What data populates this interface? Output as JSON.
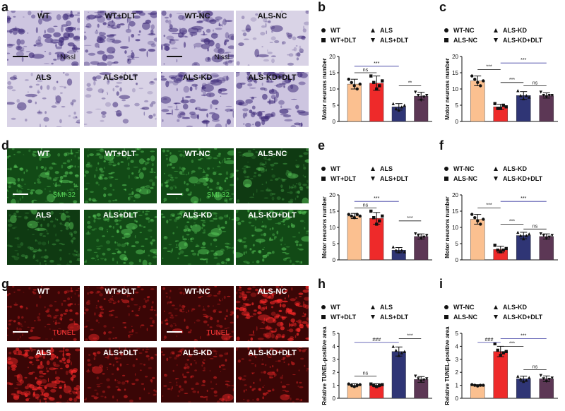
{
  "figure": {
    "panel_letters": [
      "a",
      "b",
      "c",
      "d",
      "e",
      "f",
      "g",
      "h",
      "i"
    ]
  },
  "micrographs": {
    "nissl": {
      "stain_label": "Nissl",
      "tiles": [
        "WT",
        "WT+DLT",
        "WT-NC",
        "ALS-NC",
        "ALS",
        "ALS+DLT",
        "ALS-KD",
        "ALS-KD+DLT"
      ]
    },
    "smi32": {
      "stain_label": "SMI-32",
      "tiles": [
        "WT",
        "WT+DLT",
        "WT-NC",
        "ALS-NC",
        "ALS",
        "ALS+DLT",
        "ALS-KD",
        "ALS-KD+DLT"
      ]
    },
    "tunel": {
      "stain_label": "TUNEL",
      "tiles": [
        "WT",
        "WT+DLT",
        "WT-NC",
        "ALS-NC",
        "ALS",
        "ALS+DLT",
        "ALS-KD",
        "ALS-KD+DLT"
      ]
    }
  },
  "chart_data": [
    {
      "panel": "b",
      "type": "bar",
      "ylabel": "Motor neurons number",
      "ylim": [
        0,
        20
      ],
      "yticks": [
        0,
        5,
        10,
        15,
        20
      ],
      "legend": [
        "WT",
        "ALS",
        "WT+DLT",
        "ALS+DLT"
      ],
      "series": [
        {
          "name": "WT",
          "values": [
            11.5
          ],
          "error": 1.5,
          "color": "#fbc090",
          "points": [
            13,
            12,
            11,
            10,
            11.5
          ]
        },
        {
          "name": "WT+DLT",
          "values": [
            11.8
          ],
          "error": 2.2,
          "color": "#ee2a2a",
          "points": [
            14,
            12,
            10,
            11,
            12.5
          ]
        },
        {
          "name": "ALS",
          "values": [
            4.5
          ],
          "error": 1.0,
          "color": "#2f3575",
          "points": [
            5.5,
            4,
            3.5,
            4.5,
            5
          ]
        },
        {
          "name": "ALS+DLT",
          "values": [
            7.8
          ],
          "error": 1.2,
          "color": "#5c3755",
          "points": [
            9,
            8,
            6.5,
            7.5,
            8
          ]
        }
      ],
      "significance": [
        {
          "from": 0,
          "to": 1,
          "label": "ns",
          "level": 15
        },
        {
          "from": 0,
          "to": 2,
          "label": "***",
          "level": 17
        },
        {
          "from": 2,
          "to": 3,
          "label": "**",
          "level": 11
        }
      ]
    },
    {
      "panel": "c",
      "type": "bar",
      "ylabel": "Motor neurons number",
      "ylim": [
        0,
        20
      ],
      "yticks": [
        0,
        5,
        10,
        15,
        20
      ],
      "legend": [
        "WT-NC",
        "ALS-KD",
        "ALS-NC",
        "ALS-KD+DLT"
      ],
      "series": [
        {
          "name": "WT-NC",
          "values": [
            12.5
          ],
          "error": 1.5,
          "color": "#fbc090",
          "points": [
            14,
            13,
            12,
            11,
            12.5
          ]
        },
        {
          "name": "ALS-NC",
          "values": [
            4.5
          ],
          "error": 0.8,
          "color": "#ee2a2a",
          "points": [
            5.5,
            4,
            4,
            5,
            4.5
          ]
        },
        {
          "name": "ALS-KD",
          "values": [
            8.0
          ],
          "error": 1.2,
          "color": "#2f3575",
          "points": [
            9.5,
            8,
            7,
            8,
            7.5
          ]
        },
        {
          "name": "ALS-KD+DLT",
          "values": [
            8.0
          ],
          "error": 0.8,
          "color": "#5c3755",
          "points": [
            9,
            8,
            7.5,
            8,
            8
          ]
        }
      ],
      "significance": [
        {
          "from": 0,
          "to": 1,
          "label": "***",
          "level": 16
        },
        {
          "from": 1,
          "to": 2,
          "label": "***",
          "level": 12
        },
        {
          "from": 1,
          "to": 3,
          "label": "***",
          "level": 18
        },
        {
          "from": 2,
          "to": 3,
          "label": "ns",
          "level": 11
        }
      ]
    },
    {
      "panel": "e",
      "type": "bar",
      "ylabel": "Motor neurons number",
      "ylim": [
        0,
        20
      ],
      "yticks": [
        0,
        5,
        10,
        15,
        20
      ],
      "legend": [
        "WT",
        "ALS",
        "WT+DLT",
        "ALS+DLT"
      ],
      "series": [
        {
          "name": "WT",
          "values": [
            13.5
          ],
          "error": 0.8,
          "color": "#fbc090",
          "points": [
            14,
            13.5,
            13,
            14,
            13.5
          ]
        },
        {
          "name": "WT+DLT",
          "values": [
            12.8
          ],
          "error": 1.8,
          "color": "#ee2a2a",
          "points": [
            15,
            13,
            11,
            12,
            13.5
          ]
        },
        {
          "name": "ALS",
          "values": [
            3.0
          ],
          "error": 0.8,
          "color": "#2f3575",
          "points": [
            4,
            3,
            2.5,
            3,
            2.5
          ]
        },
        {
          "name": "ALS+DLT",
          "values": [
            7.2
          ],
          "error": 0.8,
          "color": "#5c3755",
          "points": [
            8,
            7.5,
            6.5,
            7,
            7.5
          ]
        }
      ],
      "significance": [
        {
          "from": 0,
          "to": 1,
          "label": "ns",
          "level": 16
        },
        {
          "from": 0,
          "to": 2,
          "label": "***",
          "level": 18
        },
        {
          "from": 2,
          "to": 3,
          "label": "***",
          "level": 12
        }
      ]
    },
    {
      "panel": "f",
      "type": "bar",
      "ylabel": "Motor neurons number",
      "ylim": [
        0,
        20
      ],
      "yticks": [
        0,
        5,
        10,
        15,
        20
      ],
      "legend": [
        "WT-NC",
        "ALS-KD",
        "ALS-NC",
        "ALS-KD+DLT"
      ],
      "series": [
        {
          "name": "WT-NC",
          "values": [
            12.5
          ],
          "error": 1.5,
          "color": "#fbc090",
          "points": [
            14,
            13,
            12,
            11,
            12.5
          ]
        },
        {
          "name": "ALS-NC",
          "values": [
            3.2
          ],
          "error": 1.0,
          "color": "#ee2a2a",
          "points": [
            4.5,
            3,
            2.5,
            3,
            3.5
          ]
        },
        {
          "name": "ALS-KD",
          "values": [
            7.5
          ],
          "error": 1.0,
          "color": "#2f3575",
          "points": [
            8.5,
            7.5,
            6.5,
            7.5,
            8
          ]
        },
        {
          "name": "ALS-KD+DLT",
          "values": [
            7.2
          ],
          "error": 0.8,
          "color": "#5c3755",
          "points": [
            8,
            7.5,
            6.5,
            7,
            7.5
          ]
        }
      ],
      "significance": [
        {
          "from": 0,
          "to": 1,
          "label": "***",
          "level": 16
        },
        {
          "from": 1,
          "to": 2,
          "label": "***",
          "level": 11
        },
        {
          "from": 1,
          "to": 3,
          "label": "***",
          "level": 18
        },
        {
          "from": 2,
          "to": 3,
          "label": "ns",
          "level": 9.5
        }
      ]
    },
    {
      "panel": "h",
      "type": "bar",
      "ylabel": "Relative TUNEL-positive area",
      "ylim": [
        0,
        5
      ],
      "yticks": [
        0,
        1,
        2,
        3,
        4,
        5
      ],
      "legend": [
        "WT",
        "ALS",
        "WT+DLT",
        "ALS+DLT"
      ],
      "series": [
        {
          "name": "WT",
          "values": [
            1.0
          ],
          "error": 0.12,
          "color": "#fbc090",
          "points": [
            1.1,
            1.0,
            0.9,
            1.0,
            1.05
          ]
        },
        {
          "name": "WT+DLT",
          "values": [
            1.0
          ],
          "error": 0.12,
          "color": "#ee2a2a",
          "points": [
            1.1,
            1.0,
            0.9,
            1.0,
            1.05
          ]
        },
        {
          "name": "ALS",
          "values": [
            3.6
          ],
          "error": 0.35,
          "color": "#2f3575",
          "points": [
            4.0,
            3.7,
            3.3,
            3.5,
            3.6
          ]
        },
        {
          "name": "ALS+DLT",
          "values": [
            1.45
          ],
          "error": 0.22,
          "color": "#5c3755",
          "points": [
            1.7,
            1.5,
            1.3,
            1.4,
            1.5
          ]
        }
      ],
      "significance": [
        {
          "from": 0,
          "to": 1,
          "label": "ns",
          "level": 1.7
        },
        {
          "from": 0,
          "to": 2,
          "label": "###",
          "level": 4.3
        },
        {
          "from": 2,
          "to": 3,
          "label": "***",
          "level": 4.6
        }
      ]
    },
    {
      "panel": "i",
      "type": "bar",
      "ylabel": "Relative TUNEL-positive area",
      "ylim": [
        0,
        5
      ],
      "yticks": [
        0,
        1,
        2,
        3,
        4,
        5
      ],
      "legend": [
        "WT-NC",
        "ALS-KD",
        "ALS-NC",
        "ALS-KD+DLT"
      ],
      "series": [
        {
          "name": "WT-NC",
          "values": [
            1.0
          ],
          "error": 0.05,
          "color": "#fbc090",
          "points": [
            1.05,
            1.0,
            0.95,
            1.0,
            1.0
          ]
        },
        {
          "name": "ALS-NC",
          "values": [
            3.6
          ],
          "error": 0.4,
          "color": "#ee2a2a",
          "points": [
            4.2,
            3.7,
            3.3,
            3.5,
            3.6
          ]
        },
        {
          "name": "ALS-KD",
          "values": [
            1.5
          ],
          "error": 0.2,
          "color": "#2f3575",
          "points": [
            1.7,
            1.5,
            1.3,
            1.4,
            1.6
          ]
        },
        {
          "name": "ALS-KD+DLT",
          "values": [
            1.5
          ],
          "error": 0.22,
          "color": "#5c3755",
          "points": [
            1.75,
            1.5,
            1.3,
            1.45,
            1.55
          ]
        }
      ],
      "significance": [
        {
          "from": 0,
          "to": 1,
          "label": "###",
          "level": 4.3
        },
        {
          "from": 1,
          "to": 2,
          "label": "***",
          "level": 4.0
        },
        {
          "from": 1,
          "to": 3,
          "label": "***",
          "level": 4.6
        },
        {
          "from": 2,
          "to": 3,
          "label": "ns",
          "level": 2.2
        }
      ]
    }
  ]
}
